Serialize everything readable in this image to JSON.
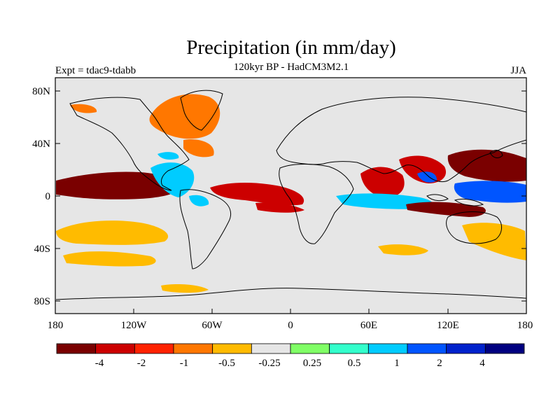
{
  "title": "Precipitation (in mm/day)",
  "subtitle": "120kyr BP - HadCM3M2.1",
  "left_label": "Expt = tdac9-tdabb",
  "right_label": "JJA",
  "map": {
    "projection": "cylindrical equidistant",
    "lat_ticks": [
      "80N",
      "40N",
      "0",
      "40S",
      "80S"
    ],
    "lon_ticks": [
      "180",
      "120W",
      "60W",
      "0",
      "60E",
      "120E",
      "180"
    ],
    "background_color": "#e6e6e6"
  },
  "colorbar": {
    "colors": [
      "#7a0000",
      "#cc0000",
      "#ff2200",
      "#ff7700",
      "#ffbb00",
      "#e6e6e6",
      "#80ff66",
      "#33ffcc",
      "#00ccff",
      "#0055ff",
      "#0022cc",
      "#000080"
    ],
    "labels": [
      "-4",
      "-2",
      "-1",
      "-0.5",
      "-0.25",
      "0.25",
      "0.5",
      "1",
      "2",
      "4"
    ]
  },
  "regions": [
    {
      "name": "equatorial-pacific-drying",
      "level": "-4"
    },
    {
      "name": "west-pacific-drying",
      "level": "-4"
    },
    {
      "name": "indian-ocean-drying",
      "level": "-2"
    },
    {
      "name": "atlantic-itcz-drying",
      "level": "-2"
    },
    {
      "name": "arabian-sea-drying",
      "level": "-2"
    },
    {
      "name": "west-pacific-wetting",
      "level": "2"
    },
    {
      "name": "indian-ocean-wetting",
      "level": "1"
    },
    {
      "name": "central-america-wetting",
      "level": "1"
    },
    {
      "name": "greenland-drying",
      "level": "-0.5"
    },
    {
      "name": "south-pacific-band",
      "level": "-0.25"
    }
  ]
}
